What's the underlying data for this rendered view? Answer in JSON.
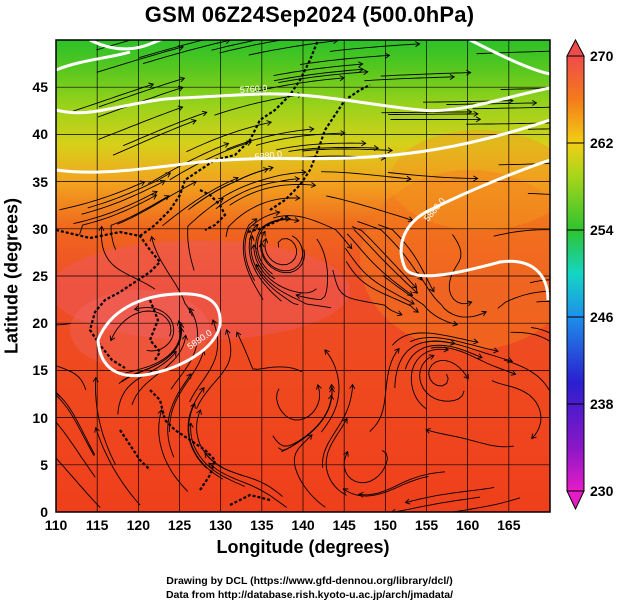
{
  "title": "GSM 06Z24Sep2024 (500.0hPa)",
  "chart_data": {
    "type": "heatmap",
    "variable_colorscale": [
      "#d01ec0",
      "#3a1fcf",
      "#1f8ae8",
      "#17d6c0",
      "#33c52a",
      "#9ad51c",
      "#f0d214",
      "#f59a1a",
      "#f04a1c",
      "#f0555d"
    ],
    "xlabel": "Longitude (degrees)",
    "ylabel": "Latitude  (degrees)",
    "xlim": [
      110,
      170
    ],
    "ylim": [
      0,
      50
    ],
    "x_ticks": [
      "110",
      "115",
      "120",
      "125",
      "130",
      "135",
      "140",
      "145",
      "150",
      "155",
      "160",
      "165"
    ],
    "y_ticks": [
      "0",
      "5",
      "10",
      "15",
      "20",
      "25",
      "30",
      "35",
      "40",
      "45"
    ],
    "colorbar": {
      "range": [
        230,
        270
      ],
      "ticks": [
        "230",
        "238",
        "246",
        "254",
        "262",
        "270"
      ]
    },
    "contours": [
      {
        "label": "5760.0",
        "lat_approx": 46
      },
      {
        "label": "5880.0",
        "lat_approx": 39.5
      },
      {
        "label": "5880.0",
        "lat_approx": 32
      },
      {
        "label": "5880.0",
        "lat_approx": 20
      }
    ]
  },
  "credits": {
    "line1": "Drawing by DCL (https://www.gfd-dennou.org/library/dcl/)",
    "line2": "Data from http://database.rish.kyoto-u.ac.jp/arch/jmadata/"
  }
}
